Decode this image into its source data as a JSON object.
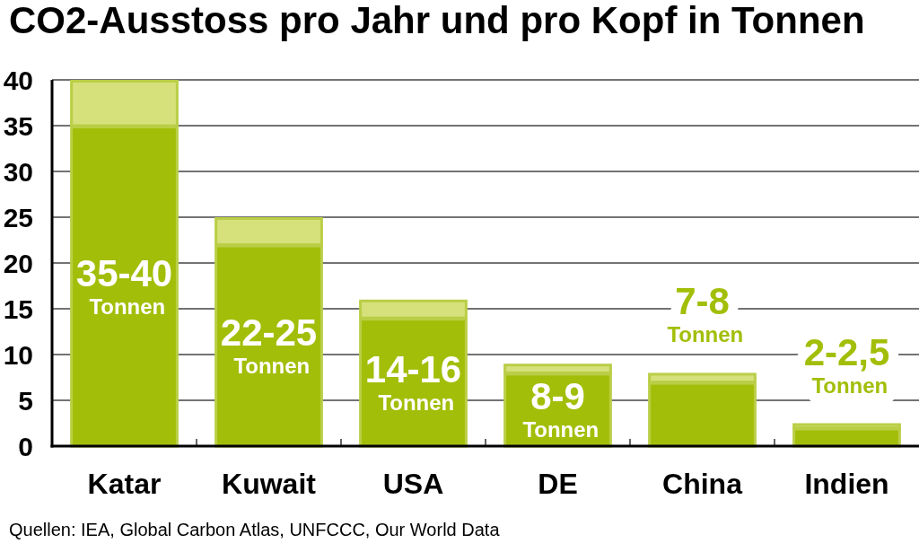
{
  "chart_data": {
    "type": "bar",
    "title": "CO2-Ausstoss pro Jahr und pro Kopf in Tonnen",
    "categories": [
      "Katar",
      "Kuwait",
      "USA",
      "DE",
      "China",
      "Indien"
    ],
    "stacked": true,
    "series": [
      {
        "color": "#a3be08",
        "values": [
          35,
          22,
          14,
          8,
          7,
          2
        ],
        "value_labels": [
          "35-40 Tonnen",
          "22-25 Tonnen",
          "14-16 Tonnen",
          "8-9 Tonnen",
          "7-8 Tonnen",
          "2-2,5 Tonnen"
        ]
      },
      {
        "color": "#d6e17c",
        "values": [
          5,
          3,
          2,
          1,
          1,
          0.5
        ]
      }
    ],
    "ylim": [
      0,
      40
    ],
    "yticks": [
      0,
      5,
      10,
      15,
      20,
      25,
      30,
      35,
      40
    ],
    "grid": "y",
    "annotations": [
      "Quellen: IEA, Global Carbon Atlas, UNFCCC, Our World Data"
    ]
  }
}
